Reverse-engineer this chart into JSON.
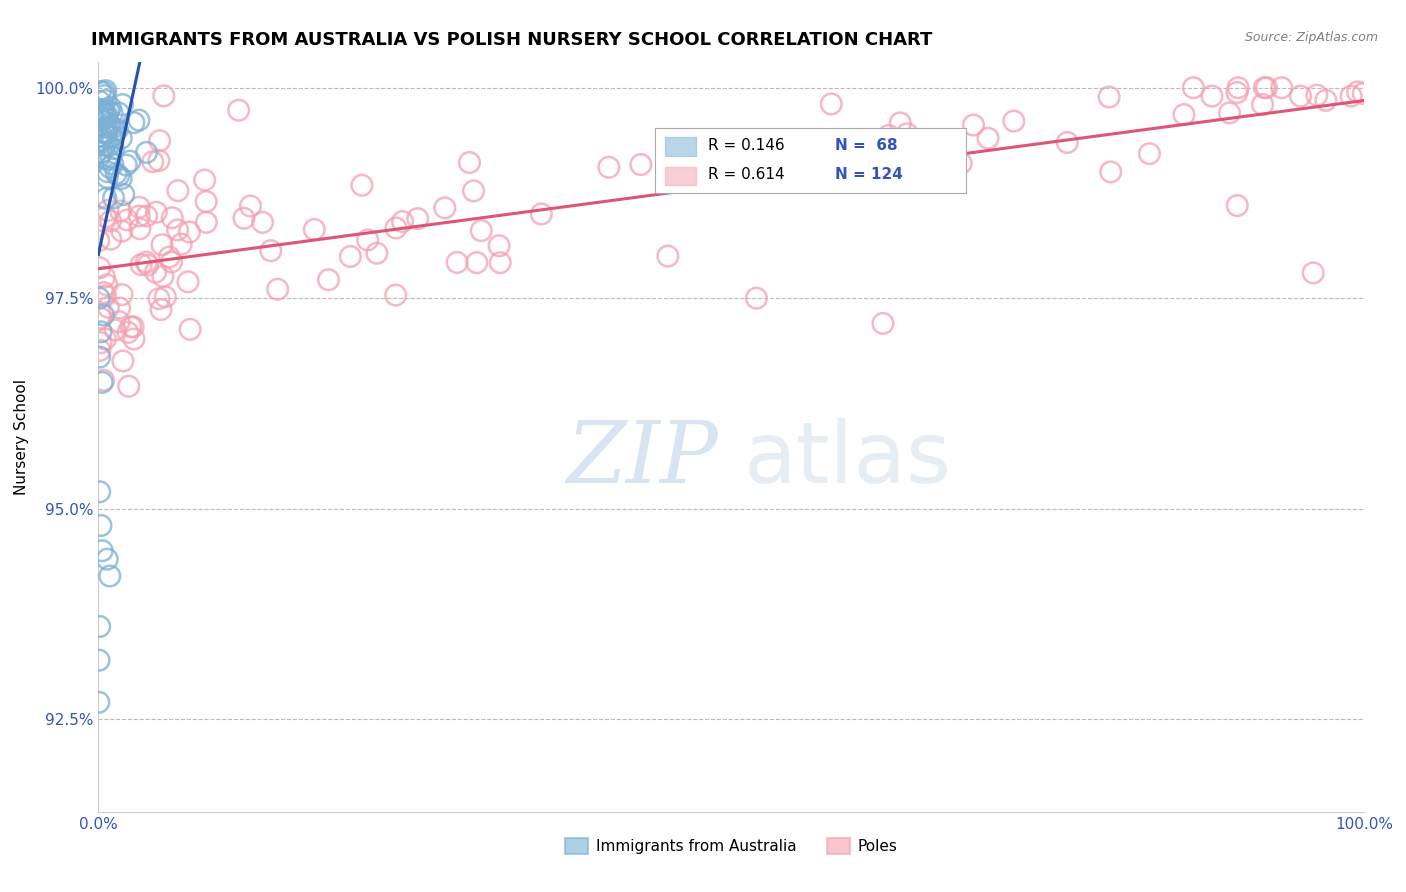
{
  "title": "IMMIGRANTS FROM AUSTRALIA VS POLISH NURSERY SCHOOL CORRELATION CHART",
  "source": "Source: ZipAtlas.com",
  "ylabel": "Nursery School",
  "xlim": [
    0.0,
    1.0
  ],
  "ylim": [
    0.914,
    1.003
  ],
  "yticks": [
    0.925,
    0.95,
    0.975,
    1.0
  ],
  "ytick_labels": [
    "92.5%",
    "95.0%",
    "97.5%",
    "100.0%"
  ],
  "xticks": [
    0.0,
    1.0
  ],
  "xtick_labels": [
    "0.0%",
    "100.0%"
  ],
  "blue_R": 0.146,
  "blue_N": 68,
  "pink_R": 0.614,
  "pink_N": 124,
  "blue_color": "#7BAFD4",
  "pink_color": "#F4A0B0",
  "blue_line_color": "#2255AA",
  "pink_line_color": "#DD5577",
  "watermark_zip": "ZIP",
  "watermark_atlas": "atlas",
  "legend_label_blue": "Immigrants from Australia",
  "legend_label_pink": "Poles",
  "background_color": "#ffffff",
  "grid_color": "#bbbbbb",
  "title_fontsize": 13,
  "axis_label_fontsize": 11,
  "tick_fontsize": 11
}
